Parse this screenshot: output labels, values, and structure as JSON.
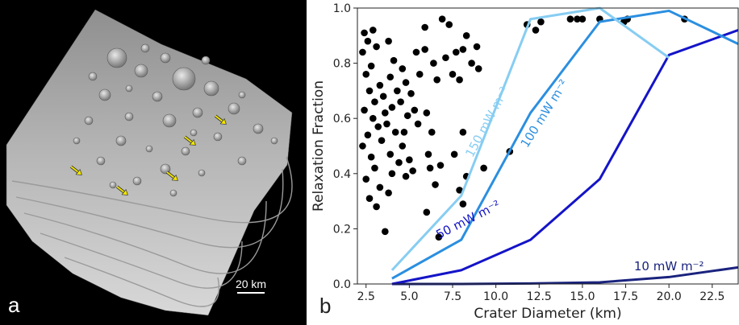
{
  "panel_a": {
    "panel_label": "a",
    "scale_bar_label": "20 km",
    "arrow_color": "#f2e600",
    "arrow_count": 5
  },
  "panel_b": {
    "panel_label": "b"
  },
  "chart_data": {
    "type": "scatter",
    "xlabel": "Crater Diameter (km)",
    "ylabel": "Relaxation Fraction",
    "xlim": [
      2,
      24
    ],
    "ylim": [
      0,
      1
    ],
    "x_ticks": [
      "2.5",
      "5.0",
      "7.5",
      "10.0",
      "12.5",
      "15.0",
      "17.5",
      "20.0",
      "22.5"
    ],
    "x_tick_values": [
      2.5,
      5.0,
      7.5,
      10.0,
      12.5,
      15.0,
      17.5,
      20.0,
      22.5
    ],
    "y_ticks": [
      "0.0",
      "0.2",
      "0.4",
      "0.6",
      "0.8",
      "1.0"
    ],
    "y_tick_values": [
      0.0,
      0.2,
      0.4,
      0.6,
      0.8,
      1.0
    ],
    "points": [
      [
        2.4,
        0.91
      ],
      [
        2.6,
        0.88
      ],
      [
        2.9,
        0.92
      ],
      [
        2.3,
        0.84
      ],
      [
        2.8,
        0.79
      ],
      [
        3.1,
        0.86
      ],
      [
        2.5,
        0.76
      ],
      [
        3.3,
        0.72
      ],
      [
        2.7,
        0.7
      ],
      [
        3.0,
        0.66
      ],
      [
        2.4,
        0.63
      ],
      [
        3.5,
        0.68
      ],
      [
        2.9,
        0.6
      ],
      [
        3.2,
        0.57
      ],
      [
        2.6,
        0.54
      ],
      [
        3.6,
        0.62
      ],
      [
        2.3,
        0.5
      ],
      [
        2.8,
        0.46
      ],
      [
        3.4,
        0.52
      ],
      [
        3.0,
        0.42
      ],
      [
        2.5,
        0.38
      ],
      [
        3.3,
        0.35
      ],
      [
        2.7,
        0.31
      ],
      [
        3.1,
        0.28
      ],
      [
        3.8,
        0.88
      ],
      [
        4.1,
        0.81
      ],
      [
        3.9,
        0.75
      ],
      [
        4.3,
        0.7
      ],
      [
        4.0,
        0.64
      ],
      [
        3.7,
        0.58
      ],
      [
        4.2,
        0.55
      ],
      [
        3.9,
        0.47
      ],
      [
        4.4,
        0.44
      ],
      [
        4.0,
        0.4
      ],
      [
        3.8,
        0.33
      ],
      [
        4.6,
        0.78
      ],
      [
        4.8,
        0.73
      ],
      [
        4.5,
        0.66
      ],
      [
        4.9,
        0.61
      ],
      [
        4.7,
        0.55
      ],
      [
        5.1,
        0.69
      ],
      [
        5.3,
        0.63
      ],
      [
        4.6,
        0.5
      ],
      [
        5.0,
        0.45
      ],
      [
        4.8,
        0.39
      ],
      [
        5.4,
        0.84
      ],
      [
        5.6,
        0.76
      ],
      [
        5.5,
        0.58
      ],
      [
        5.2,
        0.41
      ],
      [
        3.6,
        0.19
      ],
      [
        5.9,
        0.85
      ],
      [
        6.0,
        0.62
      ],
      [
        6.1,
        0.47
      ],
      [
        6.4,
        0.8
      ],
      [
        6.6,
        0.74
      ],
      [
        6.3,
        0.55
      ],
      [
        6.2,
        0.42
      ],
      [
        6.5,
        0.36
      ],
      [
        6.0,
        0.26
      ],
      [
        6.9,
        0.96
      ],
      [
        7.3,
        0.94
      ],
      [
        7.1,
        0.82
      ],
      [
        7.5,
        0.76
      ],
      [
        7.7,
        0.84
      ],
      [
        7.9,
        0.74
      ],
      [
        6.8,
        0.43
      ],
      [
        6.7,
        0.17
      ],
      [
        7.6,
        0.47
      ],
      [
        7.9,
        0.34
      ],
      [
        8.1,
        0.85
      ],
      [
        8.3,
        0.9
      ],
      [
        8.9,
        0.86
      ],
      [
        8.6,
        0.8
      ],
      [
        9.0,
        0.78
      ],
      [
        8.1,
        0.55
      ],
      [
        8.3,
        0.39
      ],
      [
        9.3,
        0.42
      ],
      [
        8.1,
        0.29
      ],
      [
        5.9,
        0.93
      ],
      [
        10.8,
        0.48
      ],
      [
        11.8,
        0.94
      ],
      [
        12.3,
        0.92
      ],
      [
        12.6,
        0.95
      ],
      [
        14.3,
        0.96
      ],
      [
        14.7,
        0.96
      ],
      [
        15.0,
        0.96
      ],
      [
        16.0,
        0.96
      ],
      [
        17.6,
        0.96
      ],
      [
        20.9,
        0.96
      ],
      [
        17.4,
        0.95
      ]
    ],
    "series": [
      {
        "name": "10 mW m⁻²",
        "color": "#1a237e",
        "x": [
          4.0,
          8.0,
          12.0,
          16.0,
          20.0,
          24.0
        ],
        "y": [
          0.0,
          0.0,
          0.002,
          0.006,
          0.025,
          0.06
        ]
      },
      {
        "name": "50 mW m⁻²",
        "color": "#1414c8",
        "x": [
          4.0,
          8.0,
          12.0,
          16.0,
          20.0,
          24.0
        ],
        "y": [
          0.0,
          0.05,
          0.16,
          0.38,
          0.83,
          0.92
        ]
      },
      {
        "name": "100 mW m⁻²",
        "color": "#2b8fe0",
        "x": [
          4.0,
          8.0,
          12.0,
          16.0,
          20.0,
          24.0
        ],
        "y": [
          0.02,
          0.16,
          0.62,
          0.95,
          0.99,
          0.87
        ]
      },
      {
        "name": "150 mW m⁻²",
        "color": "#87cdf2",
        "x": [
          4.0,
          8.0,
          12.0,
          16.0,
          20.0
        ],
        "y": [
          0.05,
          0.32,
          0.96,
          1.0,
          0.82
        ]
      }
    ],
    "annotations": [
      {
        "text": "150 mW m⁻²",
        "series": 3
      },
      {
        "text": "100 mW m⁻²",
        "series": 2
      },
      {
        "text": "50 mW m⁻²",
        "series": 1
      },
      {
        "text": "10 mW m⁻²",
        "series": 0
      }
    ],
    "grid": false,
    "legend": "none"
  }
}
